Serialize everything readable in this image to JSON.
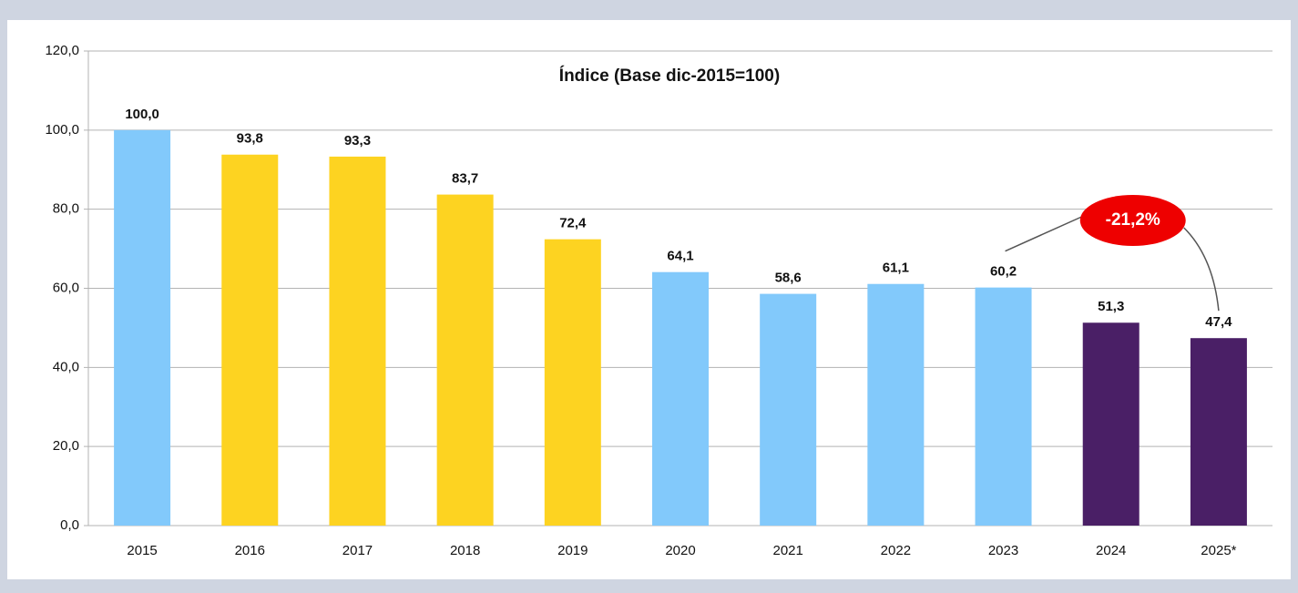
{
  "chart_data": {
    "type": "bar",
    "title": "Índice (Base dic-2015=100)",
    "categories": [
      "2015",
      "2016",
      "2017",
      "2018",
      "2019",
      "2020",
      "2021",
      "2022",
      "2023",
      "2024",
      "2025*"
    ],
    "values": [
      100.0,
      93.8,
      93.3,
      83.7,
      72.4,
      64.1,
      58.6,
      61.1,
      60.2,
      51.3,
      47.4
    ],
    "value_labels": [
      "100,0",
      "93,8",
      "93,3",
      "83,7",
      "72,4",
      "64,1",
      "58,6",
      "61,1",
      "60,2",
      "51,3",
      "47,4"
    ],
    "colors": [
      "#82c9fb",
      "#fdd321",
      "#fdd321",
      "#fdd321",
      "#fdd321",
      "#82c9fb",
      "#82c9fb",
      "#82c9fb",
      "#82c9fb",
      "#4a1f66",
      "#4a1f66"
    ],
    "ylim": [
      0,
      120
    ],
    "yticks": [
      {
        "value": 0,
        "label": "0,0"
      },
      {
        "value": 20,
        "label": "20,0"
      },
      {
        "value": 40,
        "label": "40,0"
      },
      {
        "value": 60,
        "label": "60,0"
      },
      {
        "value": 80,
        "label": "80,0"
      },
      {
        "value": 100,
        "label": "100,0"
      },
      {
        "value": 120,
        "label": "120,0"
      }
    ],
    "grid": true,
    "annotation": "-21,2%"
  }
}
